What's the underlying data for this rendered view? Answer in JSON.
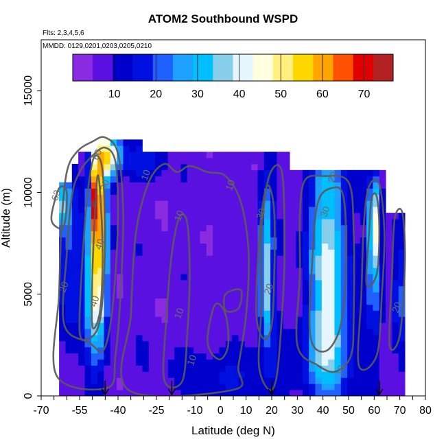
{
  "chart_data": {
    "type": "heatmap",
    "title": "ATOM2 Southbound WSPD",
    "flights_label": "Flts: 2,3,4,5,6",
    "dates_label": "MMDD: 0129,0201,0203,0205,0210",
    "xlabel": "Latitude (deg N)",
    "ylabel": "Altitude (m)",
    "xlim": [
      -70,
      80
    ],
    "ylim": [
      0,
      17500
    ],
    "x_tick_labels": [
      "-70",
      "-55",
      "-40",
      "-25",
      "-10",
      "0",
      "10",
      "20",
      "30",
      "40",
      "50",
      "60",
      "70",
      "80"
    ],
    "y_tick_labels": [
      "0",
      "5000",
      "10000",
      "15000"
    ],
    "colorbar": {
      "range": [
        0,
        77
      ],
      "tick_labels": [
        "10",
        "20",
        "30",
        "40",
        "50",
        "60",
        "70"
      ],
      "tick_values": [
        10,
        20,
        30,
        40,
        50,
        60,
        70
      ],
      "colors": [
        "#8a2be2",
        "#5a10e0",
        "#0000cd",
        "#0010e0",
        "#2060ff",
        "#1ea0ff",
        "#00bfff",
        "#87ceeb",
        "#e6f6ff",
        "#ffffe0",
        "#fff080",
        "#ffd700",
        "#ffa500",
        "#ff5000",
        "#e00000",
        "#b22222"
      ]
    },
    "contour_levels": [
      10,
      20,
      30,
      40
    ],
    "contour_labels": [
      {
        "text": "10",
        "lat": -15,
        "alt": 8800
      },
      {
        "text": "10",
        "lat": -15,
        "alt": 4000
      },
      {
        "text": "10",
        "lat": -28,
        "alt": 10800
      },
      {
        "text": "10",
        "lat": 5,
        "alt": 10300
      },
      {
        "text": "10",
        "lat": -10,
        "alt": 1700
      },
      {
        "text": "10",
        "lat": 48,
        "alt": 1200
      },
      {
        "text": "20",
        "lat": -60,
        "alt": 5300
      },
      {
        "text": "20",
        "lat": 20,
        "alt": 5200
      },
      {
        "text": "20",
        "lat": 45,
        "alt": 10700
      },
      {
        "text": "20",
        "lat": 70,
        "alt": 4300
      },
      {
        "text": "30",
        "lat": -44,
        "alt": 10300
      },
      {
        "text": "30",
        "lat": 17,
        "alt": 8900
      },
      {
        "text": "30",
        "lat": 42,
        "alt": 9000
      },
      {
        "text": "40",
        "lat": -48,
        "alt": 4600
      },
      {
        "text": "40",
        "lat": -46,
        "alt": 7400
      },
      {
        "text": "60",
        "lat": -47,
        "alt": 11800
      },
      {
        "text": "63",
        "lat": -63,
        "alt": 9800
      }
    ],
    "arrow_latitudes": [
      -45,
      -19,
      20,
      62
    ],
    "grid": false,
    "legend": "top"
  }
}
